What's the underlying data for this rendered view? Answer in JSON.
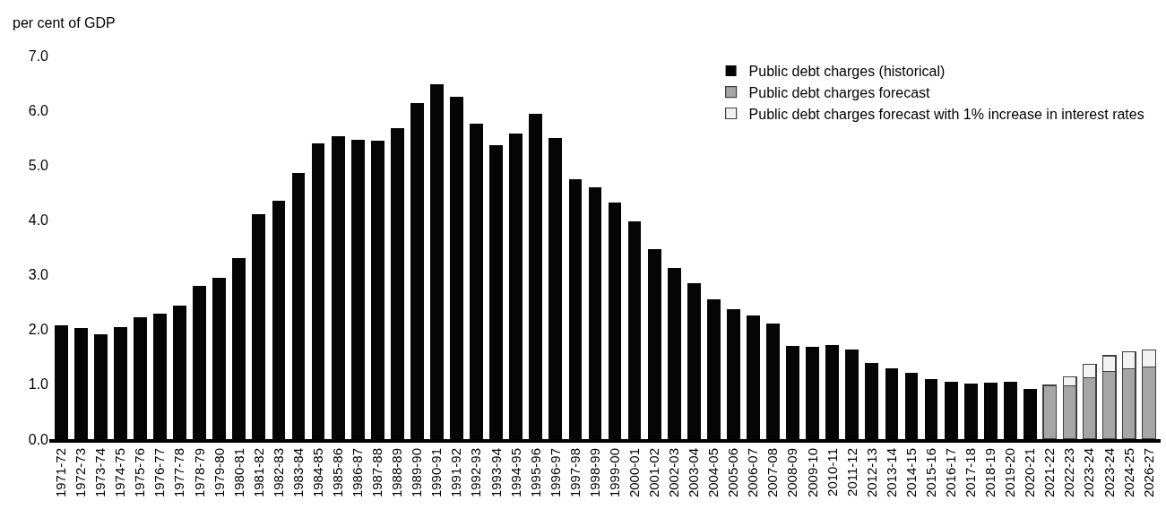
{
  "chart_data": {
    "type": "bar",
    "stacked": true,
    "ylabel": "per cent of GDP",
    "categories": [
      "1971-72",
      "1972-73",
      "1973-74",
      "1974-75",
      "1975-76",
      "1976-77",
      "1977-78",
      "1978-79",
      "1979-80",
      "1980-81",
      "1981-82",
      "1982-83",
      "1983-84",
      "1984-85",
      "1985-86",
      "1986-87",
      "1987-88",
      "1988-89",
      "1989-90",
      "1990-91",
      "1991-92",
      "1992-93",
      "1993-94",
      "1994-95",
      "1995-96",
      "1996-97",
      "1997-98",
      "1998-99",
      "1999-00",
      "2000-01",
      "2001-02",
      "2002-03",
      "2003-04",
      "2004-05",
      "2005-06",
      "2006-07",
      "2007-08",
      "2008-09",
      "2009-10",
      "2010-11",
      "2011-12",
      "2012-13",
      "2013-14",
      "2014-15",
      "2015-16",
      "2016-17",
      "2017-18",
      "2018-19",
      "2019-20",
      "2020-21",
      "2021-22",
      "2022-23",
      "2023-24",
      "2023-24",
      "2024-25",
      "2026-27"
    ],
    "series": [
      {
        "name": "Public debt charges (historical)",
        "color": "#050505",
        "values": [
          2.07,
          2.02,
          1.92,
          2.04,
          2.23,
          2.29,
          2.43,
          2.79,
          2.95,
          3.3,
          4.11,
          4.35,
          4.85,
          5.39,
          5.53,
          5.46,
          5.44,
          5.67,
          6.14,
          6.47,
          6.25,
          5.75,
          5.37,
          5.58,
          5.94,
          5.5,
          4.75,
          4.6,
          4.31,
          3.97,
          3.46,
          3.12,
          2.85,
          2.55,
          2.37,
          2.26,
          2.11,
          1.7,
          1.68,
          1.71,
          1.63,
          1.39,
          1.29,
          1.21,
          1.09,
          1.04,
          1.02,
          1.03,
          1.05,
          0.92,
          null,
          null,
          null,
          null,
          null,
          null
        ]
      },
      {
        "name": "Public debt charges forecast",
        "color": "#a6a6a6",
        "values": [
          null,
          null,
          null,
          null,
          null,
          null,
          null,
          null,
          null,
          null,
          null,
          null,
          null,
          null,
          null,
          null,
          null,
          null,
          null,
          null,
          null,
          null,
          null,
          null,
          null,
          null,
          null,
          null,
          null,
          null,
          null,
          null,
          null,
          null,
          null,
          null,
          null,
          null,
          null,
          null,
          null,
          null,
          null,
          null,
          null,
          null,
          null,
          null,
          null,
          null,
          0.98,
          0.97,
          1.12,
          1.23,
          1.28,
          1.32
        ]
      },
      {
        "name": "Public debt charges forecast with 1% increase in interest rates",
        "color": "#f2f2f2",
        "values": [
          null,
          null,
          null,
          null,
          null,
          null,
          null,
          null,
          null,
          null,
          null,
          null,
          null,
          null,
          null,
          null,
          null,
          null,
          null,
          null,
          null,
          null,
          null,
          null,
          null,
          null,
          null,
          null,
          null,
          null,
          null,
          null,
          null,
          null,
          null,
          null,
          null,
          null,
          null,
          null,
          null,
          null,
          null,
          null,
          null,
          null,
          null,
          null,
          null,
          null,
          null,
          0.17,
          0.25,
          0.29,
          0.32,
          0.31
        ]
      }
    ],
    "ylim": [
      0,
      7
    ],
    "yticks": [
      {
        "value": 0,
        "label": "0.0"
      },
      {
        "value": 1,
        "label": "1.0"
      },
      {
        "value": 2,
        "label": "2.0"
      },
      {
        "value": 3,
        "label": "3.0"
      },
      {
        "value": 4,
        "label": "4.0"
      },
      {
        "value": 5,
        "label": "5.0"
      },
      {
        "value": 6,
        "label": "6.0"
      },
      {
        "value": 7,
        "label": "7.0"
      }
    ],
    "grid": false,
    "legend": "top right"
  }
}
